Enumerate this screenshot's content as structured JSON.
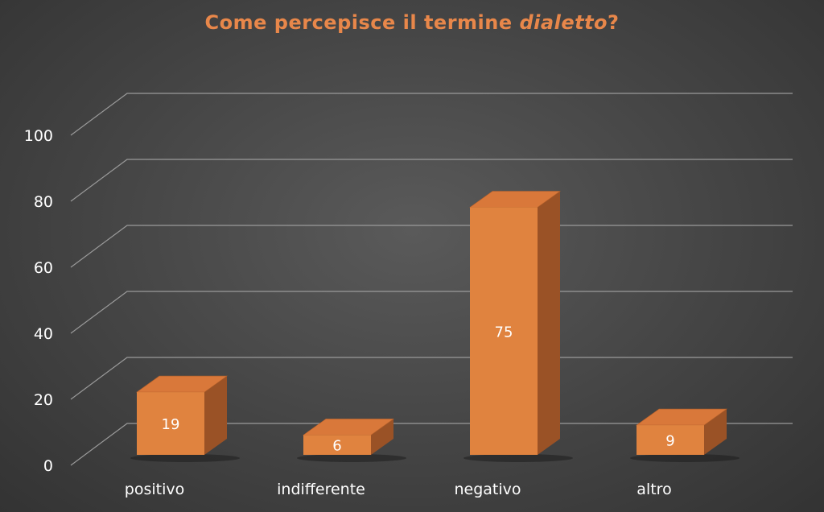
{
  "chart_data": {
    "type": "bar",
    "title_prefix": "Come percepisce il termine ",
    "title_emphasis": "dialetto",
    "title_suffix": "?",
    "categories": [
      "positivo",
      "indifferente",
      "negativo",
      "altro"
    ],
    "values": [
      19,
      6,
      75,
      9
    ],
    "ylim": [
      0,
      100
    ],
    "y_ticks": [
      "0",
      "20",
      "40",
      "60",
      "80",
      "100"
    ],
    "grid": true,
    "three_d": true,
    "bar_color": "#e0833f",
    "bar_top_color": "#d9783a",
    "bar_side_color": "#9a5226",
    "title_color": "#e8874a",
    "gridline_color": "#9a9a9a",
    "label_color": "#ffffff"
  }
}
